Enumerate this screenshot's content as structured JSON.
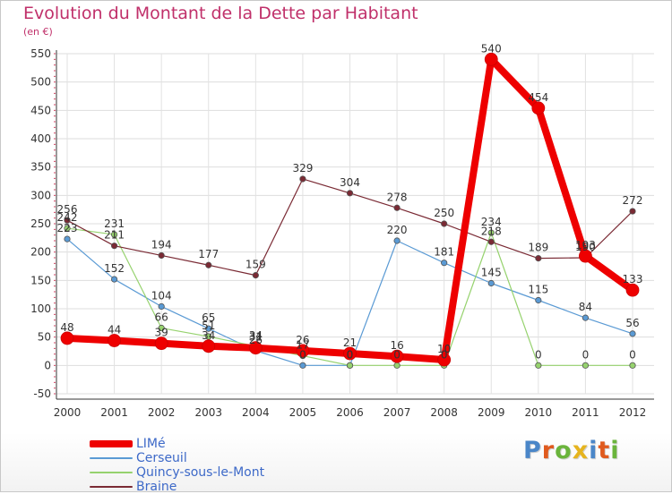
{
  "title": "Evolution du Montant de la Dette par Habitant",
  "subtitle": "(en €)",
  "logo": {
    "letters": [
      {
        "char": "P",
        "color": "#4a86c8"
      },
      {
        "char": "r",
        "color": "#e05a1e"
      },
      {
        "char": "o",
        "color": "#6ab43c"
      },
      {
        "char": "x",
        "color": "#e6b41e"
      },
      {
        "char": "i",
        "color": "#4a86c8"
      },
      {
        "char": "t",
        "color": "#e05a1e"
      },
      {
        "char": "i",
        "color": "#6ab43c"
      }
    ]
  },
  "chart_data": {
    "type": "line",
    "x": [
      "2000",
      "2001",
      "2002",
      "2003",
      "2004",
      "2005",
      "2006",
      "2007",
      "2008",
      "2009",
      "2010",
      "2011",
      "2012"
    ],
    "ylim": [
      -50,
      550
    ],
    "yticks": [
      "-50",
      "0",
      "50",
      "100",
      "150",
      "200",
      "250",
      "300",
      "350",
      "400",
      "450",
      "500",
      "550"
    ],
    "grid": true,
    "legend_position": "bottom-left",
    "series": [
      {
        "name": "Cerseuil",
        "color": "#5a9ad4",
        "width": 1.2,
        "values": [
          223,
          152,
          104,
          65,
          26,
          0,
          0,
          220,
          181,
          145,
          115,
          84,
          56
        ],
        "labels": [
          "223",
          "152",
          "104",
          "65",
          "26",
          "0",
          "0",
          "220",
          "181",
          "145",
          "115",
          "84",
          "56"
        ]
      },
      {
        "name": "Quincy-sous-le-Mont",
        "color": "#96d26e",
        "width": 1.2,
        "values": [
          242,
          231,
          66,
          51,
          34,
          17,
          0,
          0,
          0,
          234,
          0,
          0,
          0
        ],
        "labels": [
          "242",
          "231",
          "66",
          "51",
          "34",
          "17",
          "0",
          "0",
          "0",
          "234",
          "0",
          "0",
          "0"
        ]
      },
      {
        "name": "Braine",
        "color": "#7a2a34",
        "width": 1.2,
        "values": [
          256,
          211,
          194,
          177,
          159,
          329,
          304,
          278,
          250,
          218,
          189,
          190,
          272
        ],
        "labels": [
          "256",
          "211",
          "194",
          "177",
          "159",
          "329",
          "304",
          "278",
          "250",
          "218",
          "189",
          "190",
          "272"
        ]
      },
      {
        "name": "LIMé",
        "color": "#ee0000",
        "width": 8,
        "values": [
          48,
          44,
          39,
          34,
          31,
          26,
          21,
          16,
          10,
          540,
          454,
          193,
          133
        ],
        "labels": [
          "48",
          "44",
          "39",
          "34",
          "31",
          "26",
          "21",
          "16",
          "10",
          "540",
          "454",
          "193",
          "133"
        ]
      }
    ],
    "legend_order": [
      "LIMé",
      "Cerseuil",
      "Quincy-sous-le-Mont",
      "Braine"
    ]
  }
}
